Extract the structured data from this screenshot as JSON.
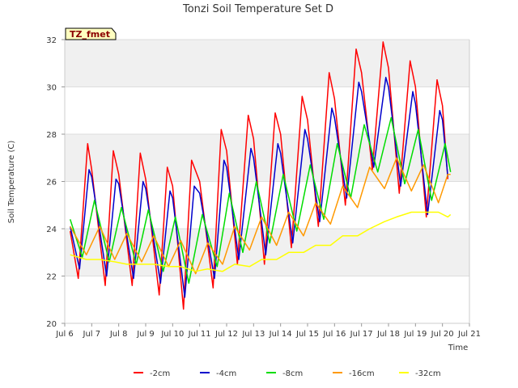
{
  "chart_data": {
    "type": "line",
    "title": "Tonzi Soil Temperature Set D",
    "xlabel": "Time",
    "ylabel": "Soil Temperature (C)",
    "badge": "TZ_fmet",
    "x_ticks": [
      "Jul 6",
      "Jul 7",
      "Jul 8",
      "Jul 9",
      "Jul 10",
      "Jul 11",
      "Jul 12",
      "Jul 13",
      "Jul 14",
      "Jul 15",
      "Jul 16",
      "Jul 17",
      "Jul 18",
      "Jul 19",
      "Jul 20",
      "Jul 21"
    ],
    "xlim": [
      6,
      21
    ],
    "ylim": [
      20,
      32
    ],
    "y_ticks": [
      "20",
      "22",
      "24",
      "26",
      "28",
      "30",
      "32"
    ],
    "grid": "horizontal bands",
    "legend_position": "bottom",
    "series": [
      {
        "name": "-2cm",
        "color": "#ff0000",
        "x": [
          6.2,
          6.5,
          6.85,
          7.0,
          7.5,
          7.8,
          8.0,
          8.5,
          8.8,
          9.0,
          9.5,
          9.8,
          10.0,
          10.4,
          10.7,
          11.0,
          11.5,
          11.8,
          12.0,
          12.4,
          12.8,
          13.0,
          13.4,
          13.8,
          14.0,
          14.4,
          14.8,
          15.0,
          15.4,
          15.8,
          16.0,
          16.4,
          16.8,
          17.0,
          17.4,
          17.8,
          18.0,
          18.4,
          18.8,
          19.0,
          19.4,
          19.8,
          20.0,
          20.2
        ],
        "y": [
          23.9,
          21.9,
          27.6,
          26.5,
          21.6,
          27.3,
          26.3,
          21.6,
          27.2,
          26.1,
          21.2,
          26.6,
          25.8,
          20.6,
          26.9,
          26.0,
          21.5,
          28.2,
          27.3,
          22.5,
          28.8,
          27.8,
          22.5,
          28.9,
          28.0,
          23.2,
          29.6,
          28.6,
          24.1,
          30.6,
          29.5,
          25.0,
          31.6,
          30.6,
          26.5,
          31.9,
          30.8,
          25.5,
          31.1,
          30.0,
          24.5,
          30.3,
          29.2,
          26.1
        ]
      },
      {
        "name": "-4cm",
        "color": "#0000cc",
        "x": [
          6.2,
          6.55,
          6.9,
          7.0,
          7.55,
          7.9,
          8.0,
          8.55,
          8.9,
          9.0,
          9.55,
          9.9,
          10.0,
          10.45,
          10.8,
          11.0,
          11.55,
          11.9,
          12.0,
          12.45,
          12.9,
          13.0,
          13.45,
          13.9,
          14.0,
          14.45,
          14.9,
          15.0,
          15.45,
          15.9,
          16.0,
          16.45,
          16.9,
          17.0,
          17.45,
          17.9,
          18.0,
          18.45,
          18.9,
          19.0,
          19.45,
          19.9,
          20.0,
          20.2
        ],
        "y": [
          24.1,
          22.3,
          26.5,
          26.2,
          22.0,
          26.1,
          25.9,
          21.9,
          26.0,
          25.7,
          21.7,
          25.6,
          25.3,
          21.1,
          25.8,
          25.5,
          21.9,
          26.9,
          26.6,
          22.7,
          27.4,
          27.0,
          22.9,
          27.6,
          27.2,
          23.4,
          28.2,
          27.8,
          24.3,
          29.1,
          28.7,
          25.3,
          30.2,
          29.8,
          26.6,
          30.4,
          30.0,
          25.8,
          29.8,
          29.3,
          24.6,
          29.0,
          28.6,
          26.2
        ]
      },
      {
        "name": "-8cm",
        "color": "#00dd00",
        "x": [
          6.2,
          6.65,
          7.1,
          7.65,
          8.1,
          8.65,
          9.1,
          9.65,
          10.1,
          10.6,
          11.1,
          11.65,
          12.1,
          12.6,
          13.1,
          13.6,
          14.1,
          14.6,
          15.1,
          15.6,
          16.1,
          16.6,
          17.1,
          17.6,
          18.1,
          18.6,
          19.1,
          19.6,
          20.1,
          20.3
        ],
        "y": [
          24.4,
          22.8,
          25.2,
          22.6,
          24.9,
          22.5,
          24.8,
          22.2,
          24.5,
          21.7,
          24.6,
          22.4,
          25.5,
          23.0,
          26.0,
          23.4,
          26.3,
          23.9,
          26.7,
          24.4,
          27.6,
          25.3,
          28.4,
          26.4,
          28.7,
          25.9,
          28.2,
          25.2,
          27.6,
          26.4
        ]
      },
      {
        "name": "-16cm",
        "color": "#ff9900",
        "x": [
          6.2,
          6.8,
          7.3,
          7.85,
          8.3,
          8.85,
          9.3,
          9.85,
          10.3,
          10.85,
          11.3,
          11.85,
          12.3,
          12.85,
          13.3,
          13.85,
          14.3,
          14.85,
          15.3,
          15.85,
          16.3,
          16.85,
          17.3,
          17.85,
          18.3,
          18.85,
          19.3,
          19.85,
          20.2,
          20.3
        ],
        "y": [
          24.1,
          22.9,
          24.1,
          22.7,
          23.8,
          22.6,
          23.7,
          22.4,
          23.5,
          22.1,
          23.4,
          22.5,
          24.1,
          23.1,
          24.5,
          23.3,
          24.7,
          23.7,
          25.1,
          24.2,
          25.8,
          24.9,
          26.6,
          25.7,
          27.0,
          25.6,
          26.7,
          25.1,
          26.3,
          26.3
        ]
      },
      {
        "name": "-32cm",
        "color": "#ffff00",
        "x": [
          6.2,
          6.8,
          7.3,
          7.85,
          8.3,
          8.85,
          9.3,
          9.85,
          10.3,
          10.85,
          11.3,
          11.85,
          12.3,
          12.85,
          13.3,
          13.85,
          14.3,
          14.85,
          15.3,
          15.85,
          16.3,
          16.85,
          17.3,
          17.85,
          18.3,
          18.85,
          19.3,
          19.85,
          20.2,
          20.3
        ],
        "y": [
          22.9,
          22.7,
          22.7,
          22.6,
          22.5,
          22.5,
          22.5,
          22.4,
          22.4,
          22.2,
          22.3,
          22.2,
          22.5,
          22.4,
          22.7,
          22.7,
          23.0,
          23.0,
          23.3,
          23.3,
          23.7,
          23.7,
          24.0,
          24.3,
          24.5,
          24.7,
          24.7,
          24.7,
          24.5,
          24.6
        ]
      }
    ]
  }
}
